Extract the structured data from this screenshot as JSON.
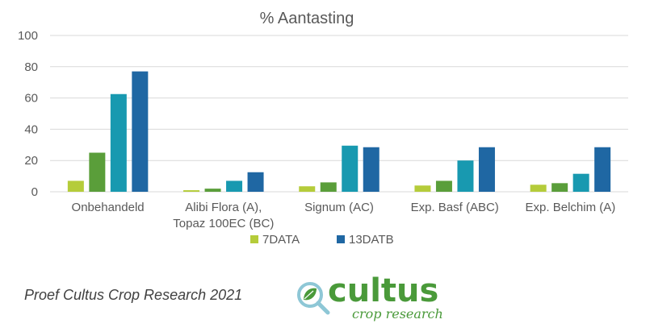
{
  "chart_data": {
    "type": "bar",
    "title": "% Aantasting",
    "categories": [
      [
        "Onbehandeld"
      ],
      [
        "Alibi Flora (A),",
        "Topaz 100EC (BC)"
      ],
      [
        "Signum (AC)"
      ],
      [
        "Exp. Basf (ABC)"
      ],
      [
        "Exp. Belchim (A)"
      ]
    ],
    "series": [
      {
        "name": "7DATA",
        "color": "#b5cc3a",
        "values": [
          7,
          1,
          3.5,
          4,
          4.5
        ]
      },
      {
        "name": "",
        "color": "#5a9e3a",
        "values": [
          25,
          2,
          6,
          7,
          5.5
        ]
      },
      {
        "name": "",
        "color": "#1899b0",
        "values": [
          62.5,
          7,
          29.5,
          20,
          11.5
        ]
      },
      {
        "name": "13DATB",
        "color": "#1f67a3",
        "values": [
          77,
          12.5,
          28.5,
          28.5,
          28.5
        ]
      }
    ],
    "ylim": [
      0,
      100
    ],
    "yticks": [
      0,
      20,
      40,
      60,
      80,
      100
    ],
    "grid": true,
    "legend": "bottom",
    "gridColor": "#d9d9d9"
  },
  "footer": {
    "text": "Proef Cultus Crop Research 2021"
  },
  "logo": {
    "word": "cultus",
    "sub": "crop research",
    "icon": "magnifier-leaf-icon",
    "color": "#4a9a3a"
  }
}
